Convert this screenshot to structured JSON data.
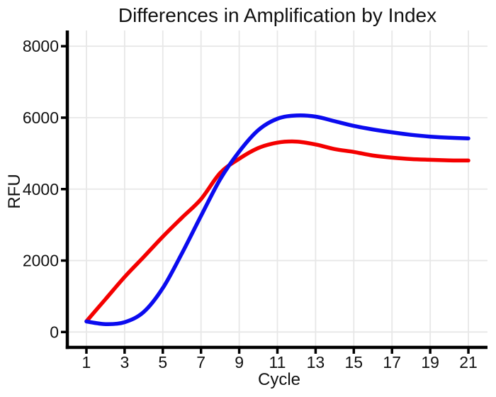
{
  "title": "Differences in Amplification by Index",
  "chart_data": {
    "type": "line",
    "title": "Differences in Amplification by Index",
    "xlabel": "Cycle",
    "ylabel": "RFU",
    "x": [
      1,
      2,
      3,
      4,
      5,
      6,
      7,
      8,
      9,
      10,
      11,
      12,
      13,
      14,
      15,
      16,
      17,
      18,
      19,
      20,
      21
    ],
    "series": [
      {
        "name": "red-series",
        "color": "#F40000",
        "values": [
          300,
          920,
          1540,
          2100,
          2670,
          3200,
          3720,
          4450,
          4850,
          5150,
          5300,
          5330,
          5250,
          5120,
          5040,
          4940,
          4880,
          4840,
          4820,
          4805,
          4800
        ]
      },
      {
        "name": "blue-series",
        "color": "#0B0BEF",
        "values": [
          295,
          220,
          275,
          560,
          1230,
          2200,
          3250,
          4270,
          5050,
          5650,
          5970,
          6060,
          6030,
          5900,
          5770,
          5670,
          5590,
          5520,
          5470,
          5440,
          5420
        ]
      }
    ],
    "xticks": [
      1,
      3,
      5,
      7,
      9,
      11,
      13,
      15,
      17,
      19,
      21
    ],
    "yticks": [
      0,
      2000,
      4000,
      6000,
      8000
    ],
    "xlim": [
      0,
      22
    ],
    "ylim": [
      -430,
      8440
    ],
    "grid": true,
    "legend": "none",
    "styles": {
      "grid_color": "#E7E7E7",
      "axis_color": "#000000",
      "text_color": "#111111",
      "background": "#FFFFFF",
      "line_width": 5.5
    }
  }
}
